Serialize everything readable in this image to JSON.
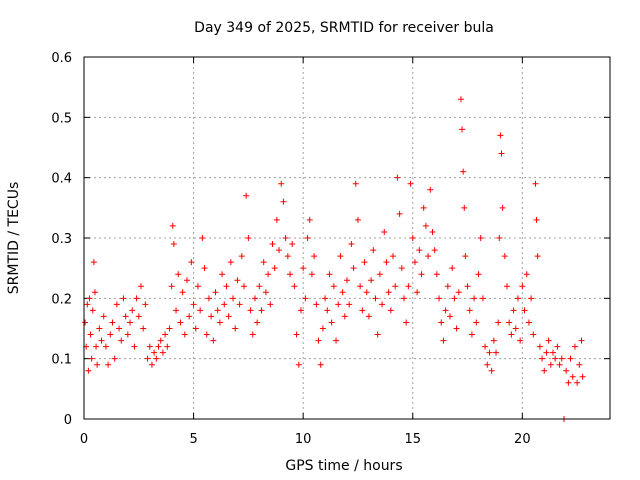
{
  "chart_data": {
    "type": "scatter",
    "title": "Day 349 of 2025, SRMTID for receiver bula",
    "xlabel": "GPS time / hours",
    "ylabel": "SRMTID / TECUs",
    "xlim": [
      0,
      24
    ],
    "ylim": [
      0,
      0.6
    ],
    "grid": true,
    "marker": "+",
    "series_color": "#ff0000",
    "x_ticks": [
      {
        "value": 0,
        "label": "0"
      },
      {
        "value": 5,
        "label": "5"
      },
      {
        "value": 10,
        "label": "10"
      },
      {
        "value": 15,
        "label": "15"
      },
      {
        "value": 20,
        "label": "20"
      }
    ],
    "y_ticks": [
      {
        "value": 0,
        "label": "0"
      },
      {
        "value": 0.1,
        "label": "0.1"
      },
      {
        "value": 0.2,
        "label": "0.2"
      },
      {
        "value": 0.3,
        "label": "0.3"
      },
      {
        "value": 0.4,
        "label": "0.4"
      },
      {
        "value": 0.5,
        "label": "0.5"
      },
      {
        "value": 0.6,
        "label": "0.6"
      }
    ],
    "series": [
      {
        "name": "SRMTID",
        "points": [
          [
            0.05,
            0.16
          ],
          [
            0.1,
            0.12
          ],
          [
            0.15,
            0.19
          ],
          [
            0.2,
            0.08
          ],
          [
            0.25,
            0.2
          ],
          [
            0.3,
            0.14
          ],
          [
            0.35,
            0.1
          ],
          [
            0.4,
            0.18
          ],
          [
            0.45,
            0.26
          ],
          [
            0.5,
            0.21
          ],
          [
            0.55,
            0.12
          ],
          [
            0.6,
            0.09
          ],
          [
            0.7,
            0.15
          ],
          [
            0.8,
            0.13
          ],
          [
            0.9,
            0.17
          ],
          [
            1.0,
            0.12
          ],
          [
            1.1,
            0.09
          ],
          [
            1.2,
            0.14
          ],
          [
            1.3,
            0.16
          ],
          [
            1.4,
            0.1
          ],
          [
            1.5,
            0.19
          ],
          [
            1.6,
            0.15
          ],
          [
            1.7,
            0.13
          ],
          [
            1.8,
            0.2
          ],
          [
            1.9,
            0.17
          ],
          [
            2.0,
            0.14
          ],
          [
            2.1,
            0.16
          ],
          [
            2.2,
            0.18
          ],
          [
            2.3,
            0.12
          ],
          [
            2.4,
            0.2
          ],
          [
            2.5,
            0.17
          ],
          [
            2.6,
            0.22
          ],
          [
            2.7,
            0.15
          ],
          [
            2.8,
            0.19
          ],
          [
            2.9,
            0.1
          ],
          [
            3.0,
            0.12
          ],
          [
            3.1,
            0.09
          ],
          [
            3.2,
            0.11
          ],
          [
            3.3,
            0.1
          ],
          [
            3.4,
            0.12
          ],
          [
            3.5,
            0.13
          ],
          [
            3.6,
            0.11
          ],
          [
            3.7,
            0.14
          ],
          [
            3.8,
            0.12
          ],
          [
            3.9,
            0.15
          ],
          [
            4.0,
            0.22
          ],
          [
            4.05,
            0.32
          ],
          [
            4.1,
            0.29
          ],
          [
            4.2,
            0.18
          ],
          [
            4.3,
            0.24
          ],
          [
            4.4,
            0.16
          ],
          [
            4.5,
            0.21
          ],
          [
            4.6,
            0.14
          ],
          [
            4.7,
            0.23
          ],
          [
            4.8,
            0.17
          ],
          [
            4.9,
            0.26
          ],
          [
            5.0,
            0.19
          ],
          [
            5.1,
            0.15
          ],
          [
            5.2,
            0.22
          ],
          [
            5.3,
            0.18
          ],
          [
            5.4,
            0.3
          ],
          [
            5.5,
            0.25
          ],
          [
            5.6,
            0.14
          ],
          [
            5.7,
            0.2
          ],
          [
            5.8,
            0.17
          ],
          [
            5.9,
            0.13
          ],
          [
            6.0,
            0.21
          ],
          [
            6.1,
            0.18
          ],
          [
            6.2,
            0.16
          ],
          [
            6.3,
            0.24
          ],
          [
            6.4,
            0.19
          ],
          [
            6.5,
            0.22
          ],
          [
            6.6,
            0.17
          ],
          [
            6.7,
            0.26
          ],
          [
            6.8,
            0.2
          ],
          [
            6.9,
            0.15
          ],
          [
            7.0,
            0.23
          ],
          [
            7.1,
            0.19
          ],
          [
            7.2,
            0.27
          ],
          [
            7.3,
            0.22
          ],
          [
            7.4,
            0.37
          ],
          [
            7.5,
            0.3
          ],
          [
            7.6,
            0.18
          ],
          [
            7.7,
            0.14
          ],
          [
            7.8,
            0.2
          ],
          [
            7.9,
            0.16
          ],
          [
            8.0,
            0.22
          ],
          [
            8.1,
            0.18
          ],
          [
            8.2,
            0.26
          ],
          [
            8.3,
            0.21
          ],
          [
            8.4,
            0.24
          ],
          [
            8.5,
            0.19
          ],
          [
            8.6,
            0.29
          ],
          [
            8.7,
            0.25
          ],
          [
            8.8,
            0.33
          ],
          [
            8.9,
            0.28
          ],
          [
            9.0,
            0.39
          ],
          [
            9.1,
            0.36
          ],
          [
            9.2,
            0.3
          ],
          [
            9.3,
            0.27
          ],
          [
            9.4,
            0.24
          ],
          [
            9.5,
            0.29
          ],
          [
            9.6,
            0.22
          ],
          [
            9.7,
            0.14
          ],
          [
            9.8,
            0.09
          ],
          [
            9.9,
            0.18
          ],
          [
            10.0,
            0.25
          ],
          [
            10.1,
            0.2
          ],
          [
            10.2,
            0.3
          ],
          [
            10.3,
            0.33
          ],
          [
            10.4,
            0.24
          ],
          [
            10.5,
            0.27
          ],
          [
            10.6,
            0.19
          ],
          [
            10.7,
            0.13
          ],
          [
            10.8,
            0.09
          ],
          [
            10.9,
            0.15
          ],
          [
            11.0,
            0.2
          ],
          [
            11.1,
            0.18
          ],
          [
            11.2,
            0.24
          ],
          [
            11.3,
            0.16
          ],
          [
            11.4,
            0.22
          ],
          [
            11.5,
            0.13
          ],
          [
            11.6,
            0.19
          ],
          [
            11.7,
            0.27
          ],
          [
            11.8,
            0.21
          ],
          [
            11.9,
            0.17
          ],
          [
            12.0,
            0.23
          ],
          [
            12.1,
            0.19
          ],
          [
            12.2,
            0.29
          ],
          [
            12.3,
            0.25
          ],
          [
            12.4,
            0.39
          ],
          [
            12.5,
            0.33
          ],
          [
            12.6,
            0.22
          ],
          [
            12.7,
            0.18
          ],
          [
            12.8,
            0.26
          ],
          [
            12.9,
            0.21
          ],
          [
            13.0,
            0.17
          ],
          [
            13.1,
            0.23
          ],
          [
            13.2,
            0.28
          ],
          [
            13.3,
            0.2
          ],
          [
            13.4,
            0.14
          ],
          [
            13.5,
            0.24
          ],
          [
            13.6,
            0.19
          ],
          [
            13.7,
            0.31
          ],
          [
            13.8,
            0.26
          ],
          [
            13.9,
            0.21
          ],
          [
            14.0,
            0.18
          ],
          [
            14.1,
            0.27
          ],
          [
            14.2,
            0.22
          ],
          [
            14.3,
            0.4
          ],
          [
            14.4,
            0.34
          ],
          [
            14.5,
            0.25
          ],
          [
            14.6,
            0.2
          ],
          [
            14.7,
            0.16
          ],
          [
            14.8,
            0.22
          ],
          [
            14.9,
            0.39
          ],
          [
            15.0,
            0.3
          ],
          [
            15.1,
            0.26
          ],
          [
            15.2,
            0.21
          ],
          [
            15.3,
            0.28
          ],
          [
            15.4,
            0.24
          ],
          [
            15.5,
            0.35
          ],
          [
            15.6,
            0.32
          ],
          [
            15.7,
            0.27
          ],
          [
            15.8,
            0.38
          ],
          [
            15.9,
            0.31
          ],
          [
            16.0,
            0.28
          ],
          [
            16.1,
            0.24
          ],
          [
            16.2,
            0.2
          ],
          [
            16.3,
            0.16
          ],
          [
            16.4,
            0.13
          ],
          [
            16.5,
            0.18
          ],
          [
            16.6,
            0.22
          ],
          [
            16.7,
            0.17
          ],
          [
            16.8,
            0.25
          ],
          [
            16.9,
            0.2
          ],
          [
            17.0,
            0.15
          ],
          [
            17.1,
            0.21
          ],
          [
            17.2,
            0.53
          ],
          [
            17.25,
            0.48
          ],
          [
            17.3,
            0.41
          ],
          [
            17.35,
            0.35
          ],
          [
            17.4,
            0.27
          ],
          [
            17.5,
            0.22
          ],
          [
            17.6,
            0.18
          ],
          [
            17.7,
            0.14
          ],
          [
            17.8,
            0.2
          ],
          [
            17.9,
            0.16
          ],
          [
            18.0,
            0.24
          ],
          [
            18.1,
            0.3
          ],
          [
            18.2,
            0.2
          ],
          [
            18.3,
            0.12
          ],
          [
            18.4,
            0.09
          ],
          [
            18.5,
            0.11
          ],
          [
            18.6,
            0.08
          ],
          [
            18.7,
            0.13
          ],
          [
            18.8,
            0.11
          ],
          [
            18.9,
            0.16
          ],
          [
            18.95,
            0.3
          ],
          [
            19.0,
            0.47
          ],
          [
            19.05,
            0.44
          ],
          [
            19.1,
            0.35
          ],
          [
            19.2,
            0.27
          ],
          [
            19.3,
            0.22
          ],
          [
            19.4,
            0.16
          ],
          [
            19.5,
            0.14
          ],
          [
            19.6,
            0.18
          ],
          [
            19.7,
            0.15
          ],
          [
            19.8,
            0.2
          ],
          [
            19.9,
            0.13
          ],
          [
            20.0,
            0.22
          ],
          [
            20.1,
            0.18
          ],
          [
            20.2,
            0.24
          ],
          [
            20.3,
            0.16
          ],
          [
            20.4,
            0.2
          ],
          [
            20.5,
            0.14
          ],
          [
            20.6,
            0.39
          ],
          [
            20.65,
            0.33
          ],
          [
            20.7,
            0.27
          ],
          [
            20.8,
            0.12
          ],
          [
            20.9,
            0.1
          ],
          [
            21.0,
            0.08
          ],
          [
            21.1,
            0.11
          ],
          [
            21.2,
            0.13
          ],
          [
            21.3,
            0.09
          ],
          [
            21.4,
            0.11
          ],
          [
            21.5,
            0.1
          ],
          [
            21.6,
            0.12
          ],
          [
            21.7,
            0.09
          ],
          [
            21.8,
            0.1
          ],
          [
            21.9,
            0.0
          ],
          [
            22.0,
            0.08
          ],
          [
            22.1,
            0.06
          ],
          [
            22.2,
            0.1
          ],
          [
            22.3,
            0.07
          ],
          [
            22.4,
            0.12
          ],
          [
            22.5,
            0.06
          ],
          [
            22.6,
            0.09
          ],
          [
            22.7,
            0.13
          ],
          [
            22.75,
            0.07
          ]
        ]
      }
    ]
  }
}
